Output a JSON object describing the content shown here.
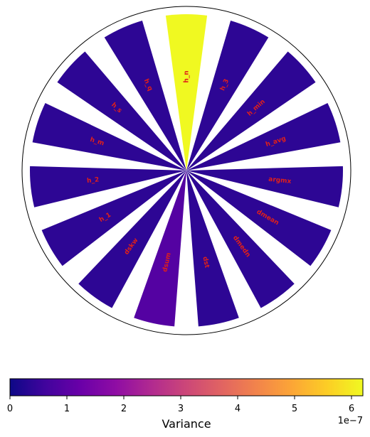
{
  "chart_data": {
    "type": "polar-bar",
    "categories": [
      "h_n",
      "h_3",
      "h_min",
      "h_avg",
      "argmx",
      "dmean",
      "dmedn",
      "dst",
      "dsum",
      "dskw",
      "h_1",
      "h_2",
      "h_m",
      "h_s",
      "h_q"
    ],
    "labels_display": [
      "h_n",
      "h_3",
      "h_min",
      "h_avg",
      "argmx",
      "dmean",
      "dmedn",
      "dst",
      "dsum",
      "dskw",
      "h_1",
      "h_2",
      "h_m",
      "h_s",
      "h_q"
    ],
    "values": [
      6.2e-07,
      3.8e-08,
      3.8e-08,
      3.8e-08,
      3.8e-08,
      3.8e-08,
      3.8e-08,
      3.8e-08,
      9e-08,
      3.8e-08,
      3.8e-08,
      3.8e-08,
      3.8e-08,
      3.8e-08,
      3.8e-08
    ],
    "colorbar": {
      "label": "Variance",
      "ticks": [
        0,
        1,
        2,
        3,
        4,
        5,
        6
      ],
      "tick_labels": [
        "0",
        "1",
        "2",
        "3",
        "4",
        "5",
        "6"
      ],
      "offset_text": "1e−7",
      "range": [
        0,
        6.2e-07
      ],
      "colormap": "plasma"
    },
    "label_color": "#e0201a",
    "grid": false
  }
}
